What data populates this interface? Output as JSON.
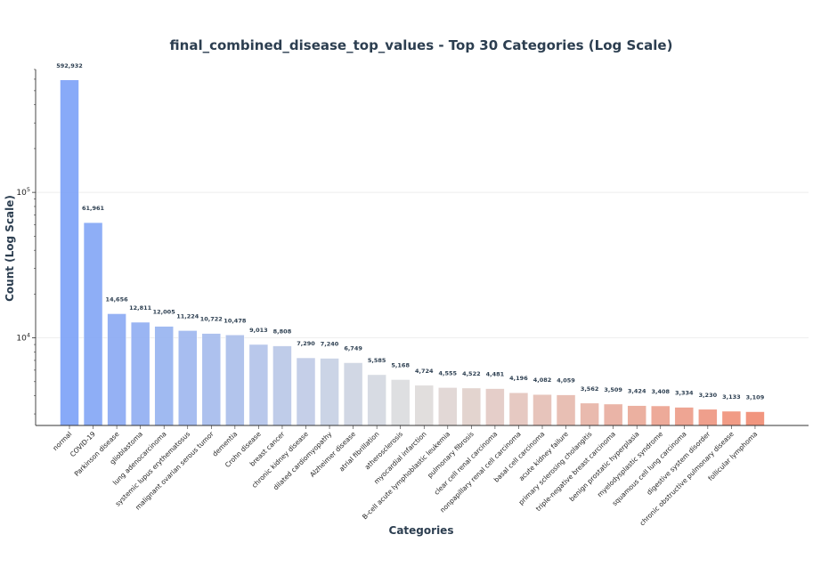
{
  "chart_data": {
    "type": "bar",
    "title": "final_combined_disease_top_values - Top 30 Categories (Log Scale)",
    "xlabel": "Categories",
    "ylabel": "Count (Log Scale)",
    "yscale": "log",
    "ylim": [
      2500,
      700000
    ],
    "yticks": [
      {
        "value": 10000,
        "base": "10",
        "exp": "4"
      },
      {
        "value": 100000,
        "base": "10",
        "exp": "5"
      }
    ],
    "grid": true,
    "color_start": "#7ba1f7",
    "color_mid": "#dddddd",
    "color_end": "#f08a70",
    "categories": [
      "normal",
      "COVID-19",
      "Parkinson disease",
      "glioblastoma",
      "lung adenocarcinoma",
      "systemic lupus erythematosus",
      "malignant ovarian serous tumor",
      "dementia",
      "Crohn disease",
      "breast cancer",
      "chronic kidney disease",
      "dilated cardiomyopathy",
      "Alzheimer disease",
      "atrial fibrillation",
      "atherosclerosis",
      "myocardial infarction",
      "B-cell acute lymphoblastic leukemia",
      "pulmonary fibrosis",
      "clear cell renal carcinoma",
      "nonpapillary renal cell carcinoma",
      "basal cell carcinoma",
      "acute kidney failure",
      "primary sclerosing cholangitis",
      "triple-negative breast carcinoma",
      "benign prostatic hyperplasia",
      "myelodysplastic syndrome",
      "squamous cell lung carcinoma",
      "digestive system disorder",
      "chronic obstructive pulmonary disease",
      "follicular lymphoma"
    ],
    "values": [
      592932,
      61961,
      14656,
      12811,
      12005,
      11224,
      10722,
      10478,
      9013,
      8808,
      7290,
      7240,
      6749,
      5585,
      5168,
      4724,
      4555,
      4522,
      4481,
      4196,
      4082,
      4059,
      3562,
      3509,
      3424,
      3408,
      3334,
      3230,
      3133,
      3109
    ],
    "value_labels": [
      "592,932",
      "61,961",
      "14,656",
      "12,811",
      "12,005",
      "11,224",
      "10,722",
      "10,478",
      "9,013",
      "8,808",
      "7,290",
      "7,240",
      "6,749",
      "5,585",
      "5,168",
      "4,724",
      "4,555",
      "4,522",
      "4,481",
      "4,196",
      "4,082",
      "4,059",
      "3,562",
      "3,509",
      "3,424",
      "3,408",
      "3,334",
      "3,230",
      "3,133",
      "3,109"
    ]
  }
}
